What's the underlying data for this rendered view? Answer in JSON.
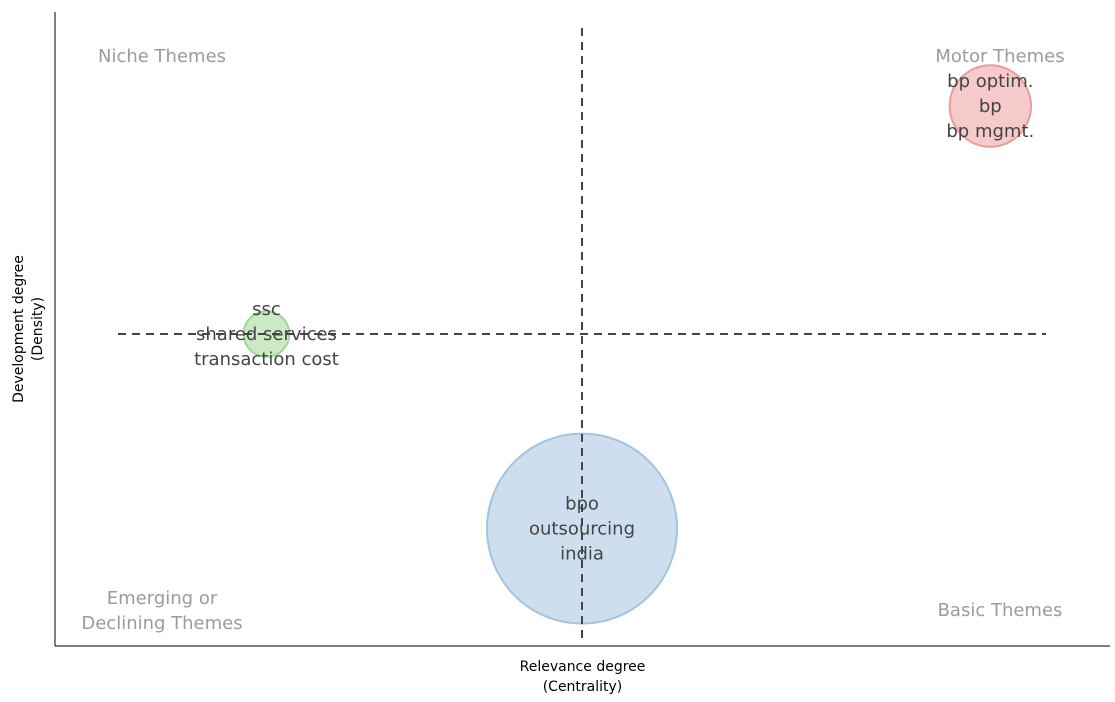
{
  "chart_data": {
    "type": "scatter",
    "title": "",
    "xlabel": [
      "Relevance degree",
      "(Centrality)"
    ],
    "ylabel": [
      "Development degree",
      "(Density)"
    ],
    "quadrant_labels": {
      "top_left": [
        "Niche Themes"
      ],
      "top_right": [
        "Motor Themes"
      ],
      "bottom_left": [
        "Emerging or",
        "Declining Themes"
      ],
      "bottom_right": [
        "Basic Themes"
      ]
    },
    "x_mid": 0.5,
    "y_mid": 0.5,
    "xlim": [
      0,
      1
    ],
    "ylim": [
      0,
      1
    ],
    "grid": false,
    "points": [
      {
        "x": 0.16,
        "y": 0.5,
        "size": 0.03,
        "color": "#b9e3b0",
        "stroke": "#a5d69a",
        "labels": [
          "ssc",
          "shared services",
          "transaction cost"
        ]
      },
      {
        "x": 0.94,
        "y": 0.91,
        "size": 0.16,
        "color": "#f3b8b8",
        "stroke": "#ea9d9d",
        "labels": [
          "bp optim.",
          "bp",
          "bp mgmt."
        ]
      },
      {
        "x": 0.5,
        "y": 0.15,
        "size": 1.0,
        "color": "#bcd4e8",
        "stroke": "#a3c3de",
        "labels": [
          "bpo",
          "outsourcing",
          "india"
        ]
      }
    ]
  }
}
